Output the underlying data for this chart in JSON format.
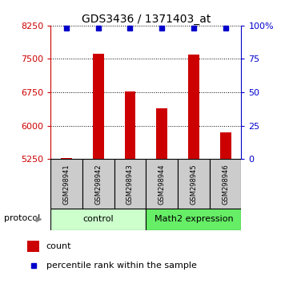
{
  "title": "GDS3436 / 1371403_at",
  "samples": [
    "GSM298941",
    "GSM298942",
    "GSM298943",
    "GSM298944",
    "GSM298945",
    "GSM298946"
  ],
  "counts": [
    5265,
    7610,
    6760,
    6390,
    7590,
    5850
  ],
  "percentile_ranks": [
    98,
    98,
    98,
    98,
    98,
    98
  ],
  "y_min": 5250,
  "y_max": 8250,
  "y_ticks_left": [
    5250,
    6000,
    6750,
    7500,
    8250
  ],
  "y_ticks_right": [
    0,
    25,
    50,
    75,
    100
  ],
  "right_tick_labels": [
    "0",
    "25",
    "50",
    "75",
    "100%"
  ],
  "bar_color": "#cc0000",
  "dot_color": "#0000cc",
  "bar_width": 0.35,
  "legend_items": [
    "count",
    "percentile rank within the sample"
  ],
  "left_axis_color": "#cc0000",
  "right_axis_color": "#0000cc",
  "title_fontsize": 10,
  "tick_fontsize": 8,
  "cell_fontsize": 6,
  "proto_fontsize": 8,
  "legend_fontsize": 8,
  "control_color": "#ccffcc",
  "math2_color": "#66ee66"
}
